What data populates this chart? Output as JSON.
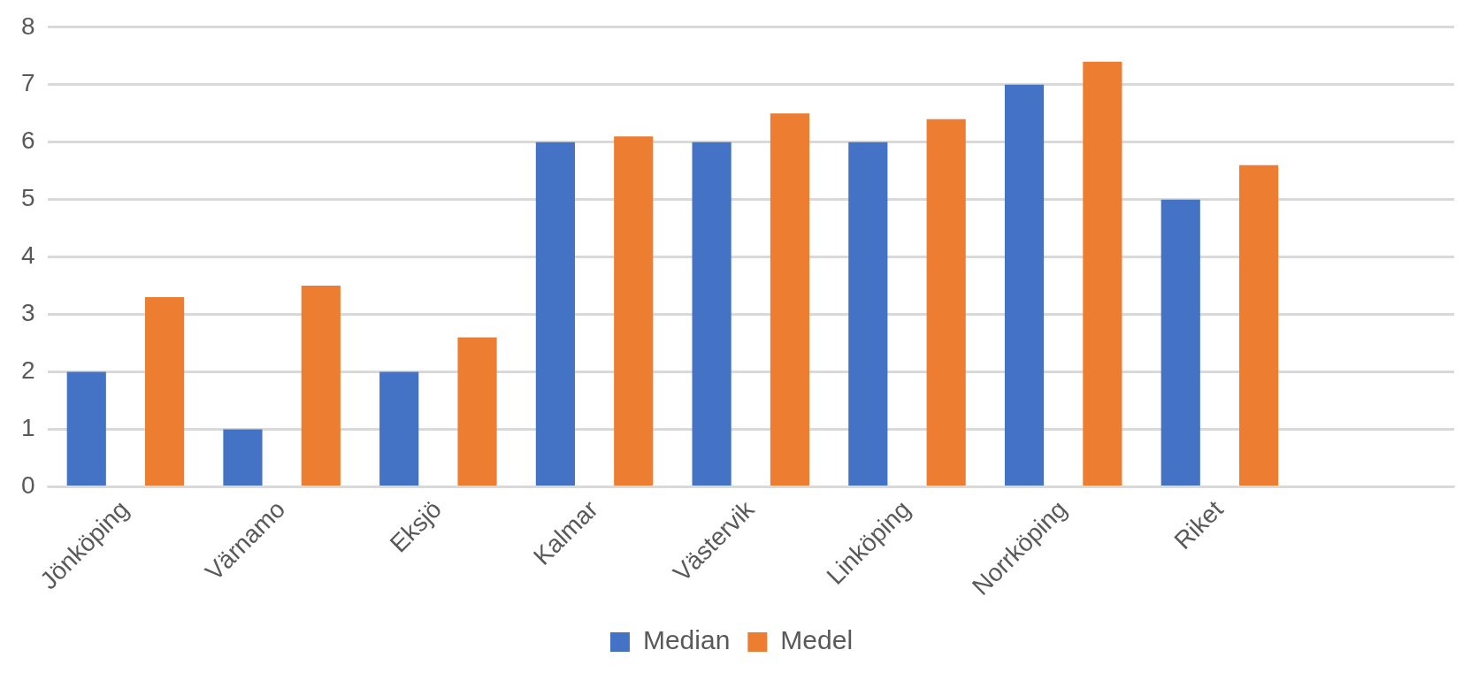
{
  "chart_data": {
    "type": "bar",
    "categories": [
      "Jönköping",
      "Värnamo",
      "Eksjö",
      "Kalmar",
      "Västervik",
      "Linköping",
      "Norrköping",
      "Riket",
      null
    ],
    "series": [
      {
        "name": "Median",
        "color": "#4472c4",
        "values": [
          2,
          1,
          2,
          6,
          6,
          6,
          7,
          5,
          null
        ]
      },
      {
        "name": "Medel",
        "color": "#ed7d31",
        "values": [
          3.3,
          3.5,
          2.6,
          6.1,
          6.5,
          6.4,
          7.4,
          5.6,
          null
        ]
      }
    ],
    "ylim": [
      0,
      8
    ],
    "yticks": [
      0,
      1,
      2,
      3,
      4,
      5,
      6,
      7,
      8
    ],
    "grid": "y",
    "legend": "bottom"
  }
}
